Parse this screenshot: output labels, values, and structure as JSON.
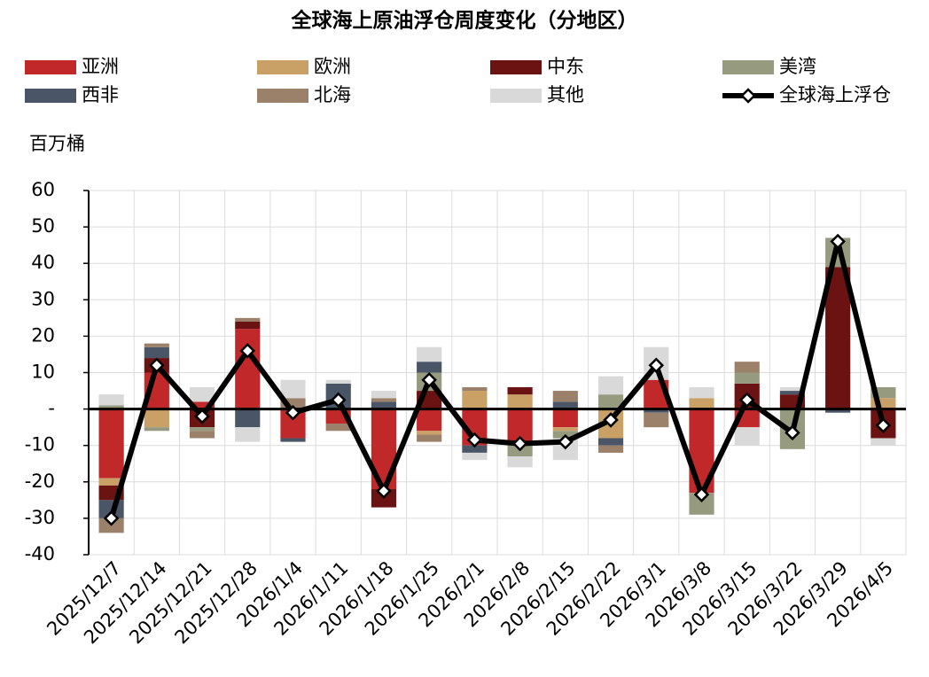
{
  "chart_data": {
    "type": "bar",
    "title": "全球海上原油浮仓周度变化（分地区）",
    "y_label": "百万桶",
    "categories": [
      "2025/12/7",
      "2025/12/14",
      "2025/12/21",
      "2025/12/28",
      "2026/1/4",
      "2026/1/11",
      "2026/1/18",
      "2026/1/25",
      "2026/2/1",
      "2026/2/8",
      "2026/2/15",
      "2026/2/22",
      "2026/3/1",
      "2026/3/8",
      "2026/3/15",
      "2026/3/22",
      "2026/3/29",
      "2026/4/5"
    ],
    "series": [
      {
        "name": "亚洲",
        "color": "#c0282a",
        "values": [
          -19,
          10,
          2,
          22,
          -8,
          -4,
          -22,
          -6,
          -10,
          -10,
          -5,
          0,
          8,
          -23,
          -5,
          0,
          0,
          0
        ]
      },
      {
        "name": "欧洲",
        "color": "#c9a065",
        "values": [
          -2,
          -5,
          0,
          0,
          0,
          0,
          0,
          -1,
          5,
          4,
          -1,
          -8,
          0,
          3,
          0,
          0,
          0,
          3
        ]
      },
      {
        "name": "中东",
        "color": "#6b1212",
        "values": [
          -4,
          4,
          -5,
          2,
          0,
          0,
          -5,
          5,
          0,
          2,
          0,
          0,
          0,
          0,
          7,
          4,
          39,
          -8
        ]
      },
      {
        "name": "美湾",
        "color": "#969b80",
        "values": [
          1,
          -1,
          -1,
          0,
          0,
          0,
          0,
          5,
          0,
          -3,
          -2,
          4,
          0,
          -6,
          3,
          -11,
          8,
          3
        ]
      },
      {
        "name": "西非",
        "color": "#4b5568",
        "values": [
          -5,
          3,
          0,
          -5,
          -1,
          7,
          2,
          3,
          -2,
          0,
          2,
          -2,
          -1,
          0,
          0,
          1,
          -1,
          0
        ]
      },
      {
        "name": "北海",
        "color": "#9b8169",
        "values": [
          -4,
          1,
          -2,
          1,
          3,
          -2,
          1,
          -2,
          1,
          0,
          3,
          -2,
          -4,
          0,
          3,
          0,
          0,
          0
        ]
      },
      {
        "name": "其他",
        "color": "#d9d9d9",
        "values": [
          3,
          0,
          4,
          -4,
          5,
          1,
          2,
          4,
          -2,
          -3,
          -6,
          5,
          9,
          3,
          -5,
          1,
          0,
          -2
        ]
      }
    ],
    "line": {
      "type": "line",
      "name": "全球海上浮仓",
      "color": "#000000",
      "values": [
        -30,
        12,
        -2,
        16,
        -1,
        2.5,
        -22.5,
        8,
        -8.5,
        -9.5,
        -9,
        -3,
        12,
        -23.5,
        2.5,
        -6.5,
        46,
        -4.5
      ]
    },
    "ylim": [
      -40,
      60
    ],
    "yticks": [
      -40,
      -30,
      -20,
      -10,
      {
        "value": 0,
        "label": "-"
      },
      10,
      20,
      30,
      40,
      50,
      60
    ],
    "grid": true
  }
}
